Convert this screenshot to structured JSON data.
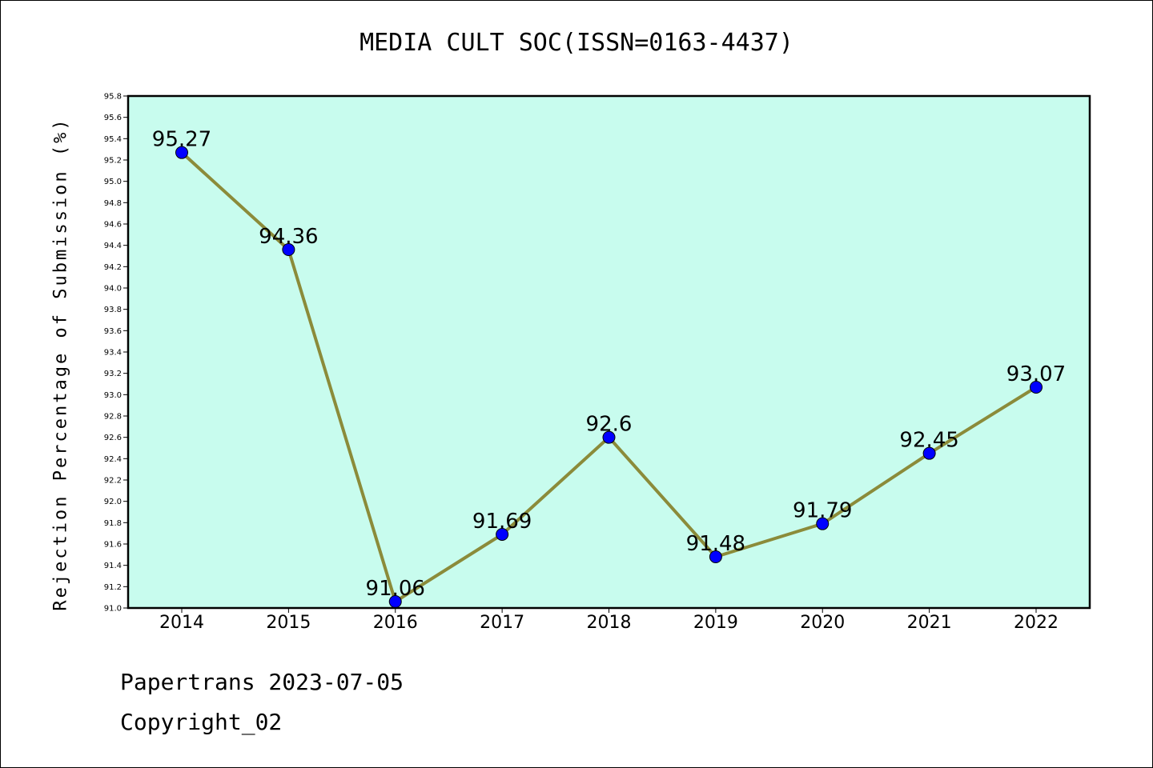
{
  "chart_data": {
    "type": "line",
    "title": "MEDIA CULT SOC(ISSN=0163-4437)",
    "xlabel": "",
    "ylabel": "Rejection Percentage of Submission (%)",
    "categories": [
      "2014",
      "2015",
      "2016",
      "2017",
      "2018",
      "2019",
      "2020",
      "2021",
      "2022"
    ],
    "values": [
      95.27,
      94.36,
      91.06,
      91.69,
      92.6,
      91.48,
      91.79,
      92.45,
      93.07
    ],
    "data_labels": [
      "95.27",
      "94.36",
      "91.06",
      "91.69",
      "92.6",
      "91.48",
      "91.79",
      "92.45",
      "93.07"
    ],
    "ylim": [
      91.0,
      95.8
    ],
    "yticks": [
      "91.0",
      "91.2",
      "91.4",
      "91.6",
      "91.8",
      "92.0",
      "92.2",
      "92.4",
      "92.6",
      "92.8",
      "93.0",
      "93.2",
      "93.4",
      "93.6",
      "93.8",
      "94.0",
      "94.2",
      "94.4",
      "94.6",
      "94.8",
      "95.0",
      "95.2",
      "95.4",
      "95.6",
      "95.8"
    ],
    "grid": false,
    "legend": "none",
    "colors": {
      "plot_background": "#c8fcee",
      "line": "#8b8b3a",
      "marker": "#0000ff"
    }
  },
  "footer": {
    "line1": "Papertrans 2023-07-05",
    "line2": "Copyright_02"
  }
}
